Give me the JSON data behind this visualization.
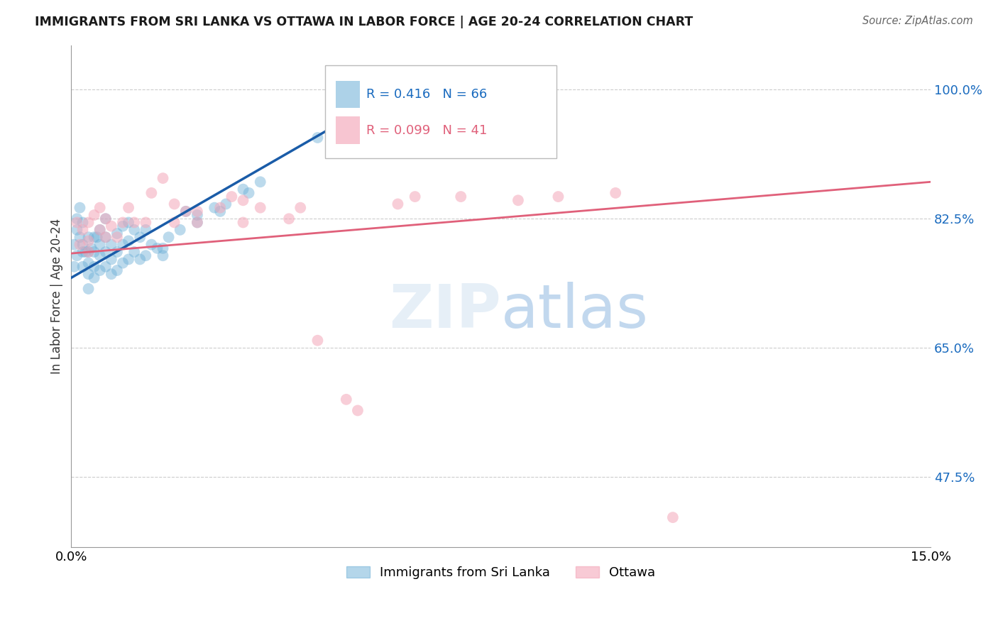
{
  "title": "IMMIGRANTS FROM SRI LANKA VS OTTAWA IN LABOR FORCE | AGE 20-24 CORRELATION CHART",
  "source_text": "Source: ZipAtlas.com",
  "ylabel": "In Labor Force | Age 20-24",
  "xmin": 0.0,
  "xmax": 0.15,
  "ymin": 0.38,
  "ymax": 1.06,
  "yticks": [
    1.0,
    0.825,
    0.65,
    0.475
  ],
  "ytick_labels": [
    "100.0%",
    "82.5%",
    "65.0%",
    "47.5%"
  ],
  "xticks": [
    0.0,
    0.05,
    0.1,
    0.15
  ],
  "xtick_labels": [
    "0.0%",
    "",
    "",
    "15.0%"
  ],
  "blue_R": 0.416,
  "blue_N": 66,
  "pink_R": 0.099,
  "pink_N": 41,
  "blue_color": "#6baed6",
  "pink_color": "#f4a7b9",
  "blue_line_color": "#1a5ca8",
  "pink_line_color": "#e0607a",
  "legend_blue_label": "Immigrants from Sri Lanka",
  "legend_pink_label": "Ottawa",
  "blue_line_x0": 0.0,
  "blue_line_y0": 0.745,
  "blue_line_x1": 0.057,
  "blue_line_y1": 1.0,
  "pink_line_x0": 0.0,
  "pink_line_y0": 0.778,
  "pink_line_x1": 0.15,
  "pink_line_y1": 0.875,
  "blue_x": [
    0.0005,
    0.0005,
    0.001,
    0.001,
    0.001,
    0.0015,
    0.0015,
    0.002,
    0.002,
    0.002,
    0.002,
    0.0025,
    0.003,
    0.003,
    0.003,
    0.003,
    0.003,
    0.0035,
    0.004,
    0.004,
    0.004,
    0.004,
    0.0045,
    0.005,
    0.005,
    0.005,
    0.005,
    0.006,
    0.006,
    0.006,
    0.006,
    0.007,
    0.007,
    0.007,
    0.008,
    0.008,
    0.008,
    0.009,
    0.009,
    0.009,
    0.01,
    0.01,
    0.01,
    0.011,
    0.011,
    0.012,
    0.012,
    0.013,
    0.013,
    0.014,
    0.015,
    0.016,
    0.016,
    0.017,
    0.019,
    0.02,
    0.022,
    0.022,
    0.025,
    0.026,
    0.027,
    0.03,
    0.031,
    0.033,
    0.043,
    0.057
  ],
  "blue_y": [
    0.79,
    0.76,
    0.81,
    0.825,
    0.775,
    0.8,
    0.84,
    0.82,
    0.79,
    0.78,
    0.76,
    0.78,
    0.8,
    0.78,
    0.765,
    0.75,
    0.73,
    0.785,
    0.8,
    0.78,
    0.76,
    0.745,
    0.8,
    0.81,
    0.79,
    0.775,
    0.755,
    0.825,
    0.8,
    0.78,
    0.76,
    0.79,
    0.77,
    0.75,
    0.805,
    0.78,
    0.755,
    0.815,
    0.79,
    0.765,
    0.82,
    0.795,
    0.77,
    0.81,
    0.78,
    0.8,
    0.77,
    0.81,
    0.775,
    0.79,
    0.785,
    0.785,
    0.775,
    0.8,
    0.81,
    0.835,
    0.82,
    0.83,
    0.84,
    0.835,
    0.845,
    0.865,
    0.86,
    0.875,
    0.935,
    1.0
  ],
  "pink_x": [
    0.001,
    0.0015,
    0.002,
    0.003,
    0.003,
    0.003,
    0.004,
    0.005,
    0.005,
    0.006,
    0.006,
    0.007,
    0.008,
    0.009,
    0.01,
    0.011,
    0.013,
    0.014,
    0.016,
    0.018,
    0.018,
    0.02,
    0.022,
    0.022,
    0.026,
    0.028,
    0.03,
    0.03,
    0.033,
    0.038,
    0.04,
    0.043,
    0.048,
    0.05,
    0.057,
    0.06,
    0.068,
    0.078,
    0.085,
    0.095,
    0.105
  ],
  "pink_y": [
    0.82,
    0.79,
    0.81,
    0.82,
    0.795,
    0.78,
    0.83,
    0.84,
    0.81,
    0.825,
    0.8,
    0.815,
    0.8,
    0.82,
    0.84,
    0.82,
    0.82,
    0.86,
    0.88,
    0.845,
    0.82,
    0.835,
    0.835,
    0.82,
    0.84,
    0.855,
    0.85,
    0.82,
    0.84,
    0.825,
    0.84,
    0.66,
    0.58,
    0.565,
    0.845,
    0.855,
    0.855,
    0.85,
    0.855,
    0.86,
    0.42
  ]
}
